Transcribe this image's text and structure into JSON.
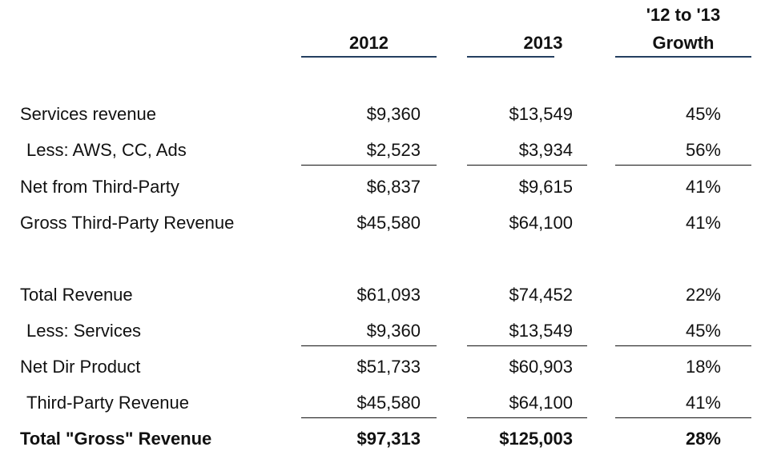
{
  "header": {
    "col_2012": "2012",
    "col_2013": "2013",
    "col_growth_line1": "'12 to '13",
    "col_growth_line2": "Growth"
  },
  "colors": {
    "header_rule": "#243f60",
    "text": "#111111"
  },
  "rows": [
    {
      "label": "Services revenue",
      "y2012": "$9,360",
      "y2013": "$13,549",
      "growth": "45%"
    },
    {
      "label": "Less: AWS, CC, Ads",
      "y2012": "$2,523",
      "y2013": "$3,934",
      "growth": "56%"
    },
    {
      "label": "Net from Third-Party",
      "y2012": "$6,837",
      "y2013": "$9,615",
      "growth": "41%"
    },
    {
      "label": "Gross Third-Party Revenue",
      "y2012": "$45,580",
      "y2013": "$64,100",
      "growth": "41%"
    },
    {
      "label": "Total Revenue",
      "y2012": "$61,093",
      "y2013": "$74,452",
      "growth": "22%"
    },
    {
      "label": "Less: Services",
      "y2012": "$9,360",
      "y2013": "$13,549",
      "growth": "45%"
    },
    {
      "label": "Net Dir Product",
      "y2012": "$51,733",
      "y2013": "$60,903",
      "growth": "18%"
    },
    {
      "label": "Third-Party Revenue",
      "y2012": "$45,580",
      "y2013": "$64,100",
      "growth": "41%"
    },
    {
      "label": "Total \"Gross\" Revenue",
      "y2012": "$97,313",
      "y2013": "$125,003",
      "growth": "28%"
    }
  ]
}
